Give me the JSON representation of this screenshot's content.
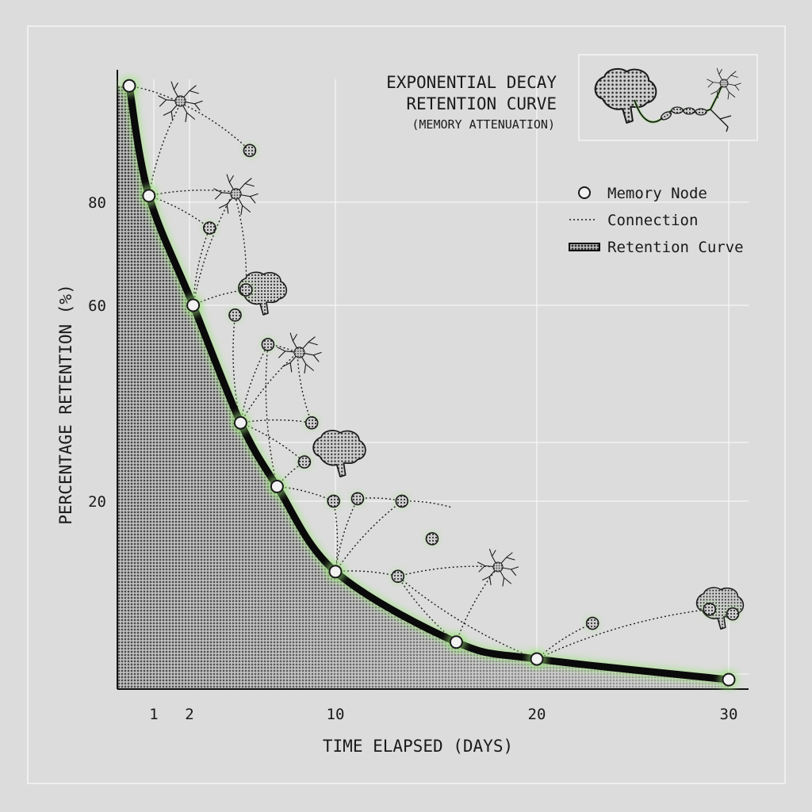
{
  "chart_data": {
    "type": "line",
    "title_line1": "EXPONENTIAL DECAY",
    "title_line2": "RETENTION CURVE",
    "subtitle": "(MEMORY ATTENUATION)",
    "xlabel": "TIME ELAPSED (DAYS)",
    "ylabel": "PERCENTAGE RETENTION (%)",
    "x_ticks": [
      1,
      2,
      10,
      20,
      30
    ],
    "x_tick_labels": [
      "1",
      "2",
      "10",
      "20",
      "30"
    ],
    "y_ticks": [
      20,
      60,
      80
    ],
    "y_tick_labels": [
      "20",
      "60",
      "80"
    ],
    "xlim": [
      -0.5,
      31
    ],
    "ylim": [
      0,
      100
    ],
    "grid": true,
    "legend": {
      "position": "right",
      "items": [
        "Memory Node",
        "Connection",
        "Retention Curve"
      ]
    },
    "series": [
      {
        "name": "Retention Curve",
        "x": [
          0,
          0.8,
          2.2,
          4.8,
          6.8,
          10,
          16,
          20,
          30
        ],
        "y": [
          98,
          81,
          60,
          36,
          23,
          12.5,
          5,
          3.2,
          1
        ]
      }
    ],
    "memory_nodes": [
      {
        "x": 0,
        "y": 98
      },
      {
        "x": 0.8,
        "y": 81
      },
      {
        "x": 2.2,
        "y": 60
      },
      {
        "x": 4.8,
        "y": 36
      },
      {
        "x": 6.8,
        "y": 23
      },
      {
        "x": 10,
        "y": 12.5
      },
      {
        "x": 16,
        "y": 5
      },
      {
        "x": 20,
        "y": 3.2
      },
      {
        "x": 30,
        "y": 1
      }
    ],
    "aux_nodes": [
      {
        "x": 5.3,
        "y": 88
      },
      {
        "x": 3.1,
        "y": 75
      },
      {
        "x": 5.1,
        "y": 63
      },
      {
        "x": 4.5,
        "y": 58
      },
      {
        "x": 6.3,
        "y": 52
      },
      {
        "x": 8.7,
        "y": 36
      },
      {
        "x": 8.3,
        "y": 28
      },
      {
        "x": 9.9,
        "y": 20
      },
      {
        "x": 14.8,
        "y": 16
      },
      {
        "x": 13.3,
        "y": 20
      },
      {
        "x": 11.1,
        "y": 20.5
      },
      {
        "x": 13.1,
        "y": 12
      },
      {
        "x": 22.9,
        "y": 7
      },
      {
        "x": 30.2,
        "y": 8
      },
      {
        "x": 29,
        "y": 8.5
      }
    ],
    "colors": {
      "background": "#dcdcdc",
      "curve": "#0a0a0a",
      "glow": "#9be37a",
      "node_fill": "#f2f2f2",
      "stroke": "#1a1a1a",
      "grid": "#f4f4f4"
    },
    "icons": [
      "neuron-icon",
      "brain-icon",
      "brain-to-neuron-icon"
    ]
  }
}
